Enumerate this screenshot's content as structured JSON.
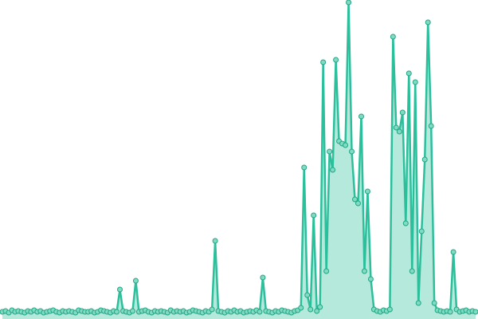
{
  "chart_data": {
    "type": "line",
    "x": [
      0,
      1,
      2,
      3,
      4,
      5,
      6,
      7,
      8,
      9,
      10,
      11,
      12,
      13,
      14,
      15,
      16,
      17,
      18,
      19,
      20,
      21,
      22,
      23,
      24,
      25,
      26,
      27,
      28,
      29,
      30,
      31,
      32,
      33,
      34,
      35,
      36,
      37,
      38,
      39,
      40,
      41,
      42,
      43,
      44,
      45,
      46,
      47,
      48,
      49,
      50,
      51,
      52,
      53,
      54,
      55,
      56,
      57,
      58,
      59,
      60,
      61,
      62,
      63,
      64,
      65,
      66,
      67,
      68,
      69,
      70,
      71,
      72,
      73,
      74,
      75,
      76,
      77,
      78,
      79,
      80,
      81,
      82,
      83,
      84,
      85,
      86,
      87,
      88,
      89,
      90,
      91,
      92,
      93,
      94,
      95,
      96,
      97,
      98,
      99,
      100,
      101,
      102,
      103,
      104,
      105,
      106,
      107,
      108,
      109,
      110,
      111,
      112,
      113,
      114,
      115,
      116,
      117,
      118,
      119,
      120,
      121,
      122,
      123,
      124,
      125,
      126,
      127,
      128,
      129,
      130,
      131,
      132,
      133,
      134,
      135,
      136,
      137,
      138,
      139,
      140,
      141,
      142,
      143,
      144,
      145,
      146,
      147,
      148,
      149
    ],
    "series": [
      {
        "color": "#2bbf9b",
        "values": [
          9,
          10,
          8,
          11,
          9,
          10,
          9,
          8,
          10,
          9,
          11,
          9,
          10,
          8,
          9,
          10,
          11,
          9,
          8,
          10,
          9,
          10,
          9,
          8,
          11,
          10,
          9,
          9,
          10,
          8,
          9,
          11,
          10,
          9,
          8,
          10,
          9,
          37,
          10,
          9,
          8,
          10,
          48,
          9,
          10,
          11,
          9,
          8,
          10,
          9,
          10,
          9,
          8,
          11,
          9,
          10,
          9,
          10,
          8,
          9,
          11,
          10,
          9,
          8,
          10,
          9,
          12,
          98,
          10,
          9,
          8,
          10,
          9,
          11,
          9,
          10,
          8,
          9,
          10,
          9,
          11,
          9,
          52,
          10,
          9,
          8,
          10,
          9,
          11,
          10,
          9,
          8,
          10,
          11,
          14,
          190,
          30,
          12,
          130,
          10,
          15,
          322,
          60,
          210,
          187,
          325,
          223,
          220,
          218,
          397,
          210,
          150,
          145,
          254,
          60,
          160,
          50,
          12,
          10,
          9,
          11,
          10,
          12,
          354,
          240,
          235,
          259,
          120,
          308,
          60,
          297,
          20,
          110,
          200,
          372,
          242,
          20,
          11,
          10,
          9,
          10,
          9,
          84,
          12,
          9,
          10,
          11,
          9,
          10,
          9
        ]
      }
    ],
    "xlim": [
      0,
      149
    ],
    "ylim": [
      0,
      400
    ],
    "markers": true
  }
}
